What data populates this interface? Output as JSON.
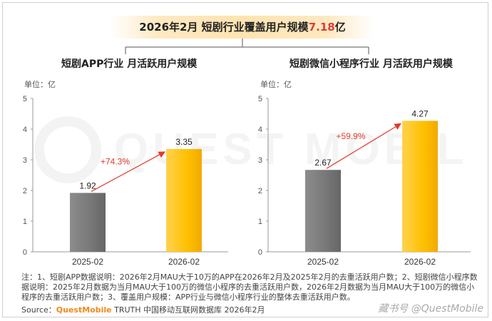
{
  "banner": {
    "prefix": "2026年2月 短剧行业覆盖用户规模",
    "highlight": "7.18",
    "suffix": "亿"
  },
  "watermark_text": "QUEST MOBILE",
  "chart_data": [
    {
      "type": "bar",
      "title": "短剧APP行业 月活跃用户规模",
      "ylabel": "单位：亿",
      "ylim": [
        0,
        5
      ],
      "yticks": [
        "0",
        "1",
        "2",
        "3",
        "4",
        "5"
      ],
      "categories": [
        "2025-02",
        "2026-02"
      ],
      "values": [
        1.92,
        3.35
      ],
      "value_labels": [
        "1.92",
        "3.35"
      ],
      "growth_label": "+74.3%",
      "colors": [
        "#7a7a7a",
        "#ffc000"
      ]
    },
    {
      "type": "bar",
      "title": "短剧微信小程序行业 月活跃用户规模",
      "ylabel": "单位：亿",
      "ylim": [
        0,
        5
      ],
      "yticks": [
        "0",
        "1",
        "2",
        "3",
        "4",
        "5"
      ],
      "categories": [
        "2025-02",
        "2026-02"
      ],
      "values": [
        2.67,
        4.27
      ],
      "value_labels": [
        "2.67",
        "4.27"
      ],
      "growth_label": "+59.9%",
      "colors": [
        "#7a7a7a",
        "#ffc000"
      ]
    }
  ],
  "notes": "注：1、短剧APP数据说明：2026年2月MAU大于10万的APP在2026年2月及2025年2月的去重活跃用户数；2、短剧微信小程序数据说明：2025年2月数据为当月MAU大于100万的微信小程序的去重活跃用户数，2026年2月数据为当月MAU大于100万的微信小程序的去重活跃用户数；3、覆盖用户规模：APP行业与微信小程序行业的整体去重活跃用户数。",
  "source": {
    "prefix": "Source：",
    "brand": "QuestMobile",
    "rest": " TRUTH 中国移动互联网数据库 2026年2月"
  },
  "footer_logo": "@QuestMobile",
  "footer_logo_prefix": "藏书号"
}
